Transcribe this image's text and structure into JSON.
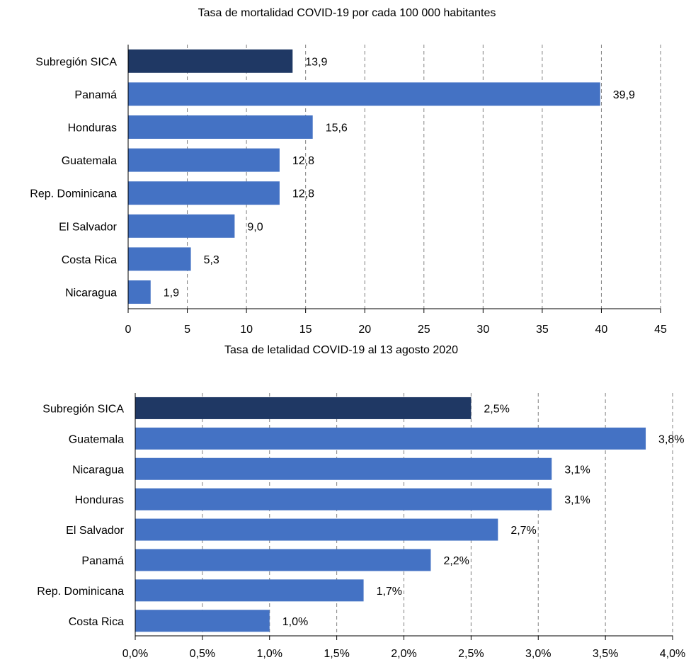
{
  "colors": {
    "highlight": "#1F3864",
    "bar": "#4472C4",
    "grid": "#808080",
    "axis": "#000000",
    "text": "#000000"
  },
  "chart_data": [
    {
      "type": "bar",
      "orientation": "horizontal",
      "title": "Tasa de mortalidad COVID-19 por cada 100 000 habitantes",
      "categories": [
        "Subregión SICA",
        "Panamá",
        "Honduras",
        "Guatemala",
        "Rep. Dominicana",
        "El Salvador",
        "Costa Rica",
        "Nicaragua"
      ],
      "values": [
        13.9,
        39.9,
        15.6,
        12.8,
        12.8,
        9.0,
        5.3,
        1.9
      ],
      "value_labels": [
        "13,9",
        "39,9",
        "15,6",
        "12,8",
        "12,8",
        "9,0",
        "5,3",
        "1,9"
      ],
      "highlight_index": 0,
      "xlim": [
        0,
        45
      ],
      "xticks": [
        0,
        5,
        10,
        15,
        20,
        25,
        30,
        35,
        40,
        45
      ],
      "xtick_labels": [
        "0",
        "5",
        "10",
        "15",
        "20",
        "25",
        "30",
        "35",
        "40",
        "45"
      ],
      "grid": "vertical dashed",
      "xlabel": "",
      "ylabel": ""
    },
    {
      "type": "bar",
      "orientation": "horizontal",
      "title": "Tasa de letalidad COVID-19 al 13 agosto 2020",
      "categories": [
        "Subregión SICA",
        "Guatemala",
        "Nicaragua",
        "Honduras",
        "El Salvador",
        "Panamá",
        "Rep. Dominicana",
        "Costa Rica"
      ],
      "values": [
        2.5,
        3.8,
        3.1,
        3.1,
        2.7,
        2.2,
        1.7,
        1.0
      ],
      "value_labels": [
        "2,5%",
        "3,8%",
        "3,1%",
        "3,1%",
        "2,7%",
        "2,2%",
        "1,7%",
        "1,0%"
      ],
      "highlight_index": 0,
      "xlim": [
        0,
        4.0
      ],
      "xticks": [
        0,
        0.5,
        1.0,
        1.5,
        2.0,
        2.5,
        3.0,
        3.5,
        4.0
      ],
      "xtick_labels": [
        "0,0%",
        "0,5%",
        "1,0%",
        "1,5%",
        "2,0%",
        "2,5%",
        "3,0%",
        "3,5%",
        "4,0%"
      ],
      "grid": "vertical dashed",
      "xlabel": "",
      "ylabel": ""
    }
  ]
}
